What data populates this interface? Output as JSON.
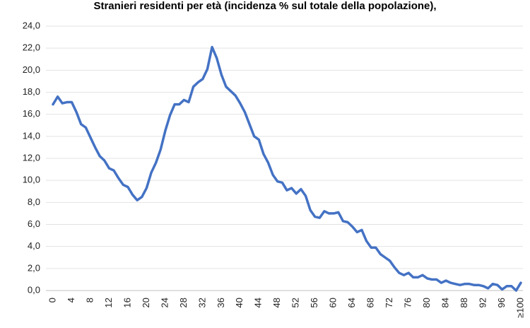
{
  "chart_data": {
    "type": "line",
    "title": "Stranieri residenti per età (incidenza % sul totale della popolazione),",
    "categories": [
      "0",
      null,
      null,
      null,
      "4",
      null,
      null,
      null,
      "8",
      null,
      null,
      null,
      "12",
      null,
      null,
      null,
      "16",
      null,
      null,
      null,
      "20",
      null,
      null,
      null,
      "24",
      null,
      null,
      null,
      "28",
      null,
      null,
      null,
      "32",
      null,
      null,
      null,
      "36",
      null,
      null,
      null,
      "40",
      null,
      null,
      null,
      "44",
      null,
      null,
      null,
      "48",
      null,
      null,
      null,
      "52",
      null,
      null,
      null,
      "56",
      null,
      null,
      null,
      "60",
      null,
      null,
      null,
      "64",
      null,
      null,
      null,
      "68",
      null,
      null,
      null,
      "72",
      null,
      null,
      null,
      "76",
      null,
      null,
      null,
      "80",
      null,
      null,
      null,
      "84",
      null,
      null,
      null,
      "88",
      null,
      null,
      null,
      "92",
      null,
      null,
      null,
      "96",
      null,
      null,
      null,
      "≥100"
    ],
    "series": [
      {
        "color": "#4472c4",
        "values": [
          16.9,
          17.6,
          17.0,
          17.1,
          17.1,
          16.2,
          15.1,
          14.8,
          13.9,
          13.0,
          12.2,
          11.8,
          11.1,
          10.9,
          10.2,
          9.6,
          9.4,
          8.7,
          8.2,
          8.5,
          9.3,
          10.7,
          11.6,
          12.8,
          14.5,
          15.9,
          16.9,
          16.9,
          17.3,
          17.1,
          18.5,
          18.9,
          19.2,
          20.1,
          22.1,
          21.1,
          19.6,
          18.5,
          18.1,
          17.7,
          17.0,
          16.2,
          15.1,
          14.0,
          13.7,
          12.4,
          11.6,
          10.5,
          9.9,
          9.8,
          9.1,
          9.3,
          8.8,
          9.2,
          8.6,
          7.3,
          6.7,
          6.6,
          7.2,
          7.0,
          7.0,
          7.1,
          6.3,
          6.2,
          5.8,
          5.3,
          5.5,
          4.5,
          3.9,
          3.9,
          3.3,
          3.0,
          2.7,
          2.1,
          1.6,
          1.4,
          1.6,
          1.2,
          1.2,
          1.4,
          1.1,
          1.0,
          1.0,
          0.7,
          0.9,
          0.7,
          0.6,
          0.5,
          0.6,
          0.6,
          0.5,
          0.5,
          0.4,
          0.2,
          0.6,
          0.5,
          0.1,
          0.4,
          0.4,
          0.0,
          0.7
        ]
      }
    ],
    "ylim": [
      0,
      24
    ],
    "yticks": [
      {
        "value": 0,
        "label": "0,0"
      },
      {
        "value": 2,
        "label": "2,0"
      },
      {
        "value": 4,
        "label": "4,0"
      },
      {
        "value": 6,
        "label": "6,0"
      },
      {
        "value": 8,
        "label": "8,0"
      },
      {
        "value": 10,
        "label": "10,0"
      },
      {
        "value": 12,
        "label": "12,0"
      },
      {
        "value": 14,
        "label": "14,0"
      },
      {
        "value": 16,
        "label": "16,0"
      },
      {
        "value": 18,
        "label": "18,0"
      },
      {
        "value": 20,
        "label": "20,0"
      },
      {
        "value": 22,
        "label": "22,0"
      },
      {
        "value": 24,
        "label": "24,0"
      }
    ],
    "grid": true
  }
}
